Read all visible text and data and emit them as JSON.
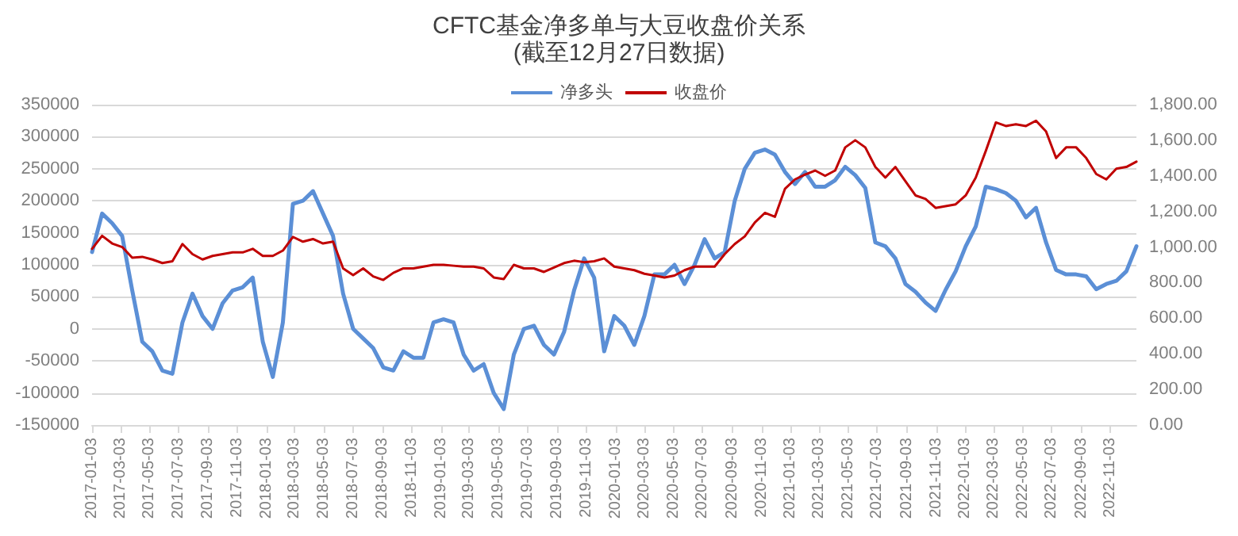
{
  "chart_data": {
    "type": "line",
    "title": "CFTC基金净多单与大豆收盘价关系",
    "subtitle": "(截至12月27日数据)",
    "legend": "top",
    "grid": "y",
    "marker": "none",
    "line_style": "solid",
    "x": [
      "2017-01-03",
      "2017-01-24",
      "2017-02-14",
      "2017-03-07",
      "2017-03-28",
      "2017-04-18",
      "2017-05-09",
      "2017-05-30",
      "2017-06-20",
      "2017-07-11",
      "2017-08-01",
      "2017-08-22",
      "2017-09-12",
      "2017-10-03",
      "2017-10-24",
      "2017-11-14",
      "2017-12-05",
      "2017-12-26",
      "2018-01-16",
      "2018-02-06",
      "2018-02-27",
      "2018-03-20",
      "2018-04-10",
      "2018-05-01",
      "2018-05-22",
      "2018-06-12",
      "2018-07-03",
      "2018-07-24",
      "2018-08-14",
      "2018-09-04",
      "2018-09-25",
      "2018-10-16",
      "2018-11-06",
      "2018-11-27",
      "2018-12-18",
      "2019-01-08",
      "2019-01-29",
      "2019-02-19",
      "2019-03-12",
      "2019-04-02",
      "2019-04-23",
      "2019-05-14",
      "2019-06-04",
      "2019-06-25",
      "2019-07-16",
      "2019-08-06",
      "2019-08-27",
      "2019-09-17",
      "2019-10-08",
      "2019-10-29",
      "2019-11-19",
      "2019-12-10",
      "2019-12-31",
      "2020-01-21",
      "2020-02-11",
      "2020-03-03",
      "2020-03-24",
      "2020-04-14",
      "2020-05-05",
      "2020-05-26",
      "2020-06-16",
      "2020-07-07",
      "2020-07-28",
      "2020-08-18",
      "2020-09-08",
      "2020-09-29",
      "2020-10-20",
      "2020-11-10",
      "2020-12-01",
      "2020-12-22",
      "2021-01-12",
      "2021-02-02",
      "2021-02-23",
      "2021-03-16",
      "2021-04-06",
      "2021-04-27",
      "2021-05-18",
      "2021-06-08",
      "2021-06-29",
      "2021-07-20",
      "2021-08-10",
      "2021-08-31",
      "2021-09-21",
      "2021-10-12",
      "2021-11-02",
      "2021-11-23",
      "2021-12-14",
      "2022-01-04",
      "2022-01-25",
      "2022-02-15",
      "2022-03-08",
      "2022-03-29",
      "2022-04-19",
      "2022-05-10",
      "2022-05-31",
      "2022-06-21",
      "2022-07-12",
      "2022-08-02",
      "2022-08-23",
      "2022-09-13",
      "2022-10-04",
      "2022-10-25",
      "2022-11-15",
      "2022-12-06",
      "2022-12-27"
    ],
    "series": [
      {
        "name": "净多头",
        "color": "#5b8fd6",
        "values": [
          120000,
          180000,
          165000,
          145000,
          60000,
          -20000,
          -35000,
          -65000,
          -70000,
          10000,
          55000,
          20000,
          0,
          40000,
          60000,
          65000,
          80000,
          -20000,
          -75000,
          10000,
          195000,
          200000,
          215000,
          180000,
          145000,
          55000,
          0,
          -15000,
          -30000,
          -60000,
          -65000,
          -35000,
          -45000,
          -45000,
          10000,
          15000,
          10000,
          -40000,
          -65000,
          -55000,
          -100000,
          -125000,
          -40000,
          0,
          5000,
          -25000,
          -40000,
          -5000,
          60000,
          110000,
          80000,
          -35000,
          20000,
          5000,
          -25000,
          20000,
          85000,
          85000,
          100000,
          70000,
          100000,
          140000,
          110000,
          120000,
          200000,
          250000,
          275000,
          280000,
          272000,
          245000,
          226000,
          245000,
          222000,
          222000,
          232000,
          253000,
          240000,
          220000,
          135000,
          129000,
          110000,
          70000,
          58000,
          41000,
          28000,
          61000,
          90000,
          129000,
          160000,
          222000,
          218000,
          212000,
          200000,
          174000,
          189000,
          135000,
          92000,
          85000,
          85000,
          82000,
          62000,
          70000,
          75000,
          90000,
          129000
        ]
      },
      {
        "name": "收盘价",
        "color": "#c00000",
        "axis": "y2",
        "values": [
          990,
          1063,
          1020,
          1000,
          940,
          945,
          930,
          910,
          920,
          1017,
          960,
          930,
          950,
          960,
          970,
          970,
          990,
          950,
          950,
          980,
          1057,
          1030,
          1045,
          1020,
          1030,
          880,
          842,
          880,
          835,
          815,
          855,
          880,
          880,
          890,
          900,
          900,
          895,
          890,
          890,
          880,
          829,
          820,
          900,
          880,
          880,
          860,
          885,
          910,
          923,
          915,
          920,
          936,
          890,
          880,
          870,
          850,
          840,
          829,
          840,
          870,
          890,
          890,
          890,
          960,
          1017,
          1060,
          1138,
          1192,
          1170,
          1327,
          1380,
          1407,
          1430,
          1400,
          1430,
          1560,
          1600,
          1560,
          1450,
          1390,
          1450,
          1370,
          1290,
          1270,
          1220,
          1230,
          1240,
          1290,
          1390,
          1540,
          1700,
          1680,
          1690,
          1680,
          1710,
          1650,
          1500,
          1560,
          1560,
          1500,
          1410,
          1380,
          1440,
          1450,
          1480
        ]
      }
    ],
    "xlim": [
      "2017-01-03",
      "2022-12-27"
    ],
    "xticks": [
      "2017-01-03",
      "2017-03-03",
      "2017-05-03",
      "2017-07-03",
      "2017-09-03",
      "2017-11-03",
      "2018-01-03",
      "2018-03-03",
      "2018-05-03",
      "2018-07-03",
      "2018-09-03",
      "2018-11-03",
      "2019-01-03",
      "2019-03-03",
      "2019-05-03",
      "2019-07-03",
      "2019-09-03",
      "2019-11-03",
      "2020-01-03",
      "2020-03-03",
      "2020-05-03",
      "2020-07-03",
      "2020-09-03",
      "2020-11-03",
      "2021-01-03",
      "2021-03-03",
      "2021-05-03",
      "2021-07-03",
      "2021-09-03",
      "2021-11-03",
      "2022-01-03",
      "2022-03-03",
      "2022-05-03",
      "2022-07-03",
      "2022-09-03",
      "2022-11-03"
    ],
    "ylim": [
      -150000,
      350000
    ],
    "yticks": [
      -150000,
      -100000,
      -50000,
      0,
      50000,
      100000,
      150000,
      200000,
      250000,
      300000,
      350000
    ],
    "y2lim": [
      0,
      1800
    ],
    "y2ticks": [
      {
        "value": 0,
        "label": "0.00"
      },
      {
        "value": 200,
        "label": "200.00"
      },
      {
        "value": 400,
        "label": "400.00"
      },
      {
        "value": 600,
        "label": "600.00"
      },
      {
        "value": 800,
        "label": "800.00"
      },
      {
        "value": 1000,
        "label": "1,000.00"
      },
      {
        "value": 1200,
        "label": "1,200.00"
      },
      {
        "value": 1400,
        "label": "1,400.00"
      },
      {
        "value": 1600,
        "label": "1,600.00"
      },
      {
        "value": 1800,
        "label": "1,800.00"
      }
    ]
  }
}
